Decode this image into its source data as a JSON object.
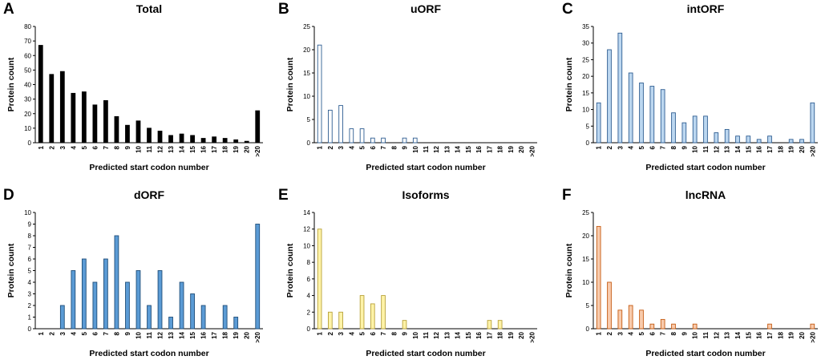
{
  "chart_data": [
    {
      "panel": "A",
      "title": "Total",
      "type": "bar",
      "ylabel": "Protein count",
      "xlabel": "Predicted start codon number",
      "ylim": [
        0,
        80
      ],
      "ystep": 10,
      "fill": "#000000",
      "edge": "#000000",
      "categories": [
        "1",
        "2",
        "3",
        "4",
        "5",
        "6",
        "7",
        "8",
        "9",
        "10",
        "11",
        "12",
        "13",
        "14",
        "15",
        "16",
        "17",
        "18",
        "19",
        "20",
        ">20"
      ],
      "values": [
        67,
        47,
        49,
        34,
        35,
        26,
        29,
        18,
        12,
        15,
        10,
        8,
        5,
        6,
        5,
        3,
        4,
        3,
        2,
        1,
        22
      ]
    },
    {
      "panel": "B",
      "title": "uORF",
      "type": "bar",
      "ylabel": "Protein count",
      "xlabel": "Predicted start codon number",
      "ylim": [
        0,
        25
      ],
      "ystep": 5,
      "fill": "#ffffff",
      "edge": "#2e5d91",
      "categories": [
        "1",
        "2",
        "3",
        "4",
        "5",
        "6",
        "7",
        "8",
        "9",
        "10",
        "11",
        "12",
        "13",
        "14",
        "15",
        "16",
        "17",
        "18",
        "19",
        "20",
        ">20"
      ],
      "values": [
        21,
        7,
        8,
        3,
        3,
        1,
        1,
        0,
        1,
        1,
        0,
        0,
        0,
        0,
        0,
        0,
        0,
        0,
        0,
        0,
        0
      ]
    },
    {
      "panel": "C",
      "title": "intORF",
      "type": "bar",
      "ylabel": "Protein count",
      "xlabel": "Predicted start codon number",
      "ylim": [
        0,
        35
      ],
      "ystep": 5,
      "fill": "#bcd7f0",
      "edge": "#2e5d91",
      "categories": [
        "1",
        "2",
        "3",
        "4",
        "5",
        "6",
        "7",
        "8",
        "9",
        "10",
        "11",
        "12",
        "13",
        "14",
        "15",
        "16",
        "17",
        "18",
        "19",
        "20",
        ">20"
      ],
      "values": [
        12,
        28,
        33,
        21,
        18,
        17,
        16,
        9,
        6,
        8,
        8,
        3,
        4,
        2,
        2,
        1,
        2,
        0,
        1,
        1,
        12
      ]
    },
    {
      "panel": "D",
      "title": "dORF",
      "type": "bar",
      "ylabel": "Protein count",
      "xlabel": "Predicted start codon number",
      "ylim": [
        0,
        10
      ],
      "ystep": 1,
      "fill": "#5b9bd5",
      "edge": "#1f4e79",
      "categories": [
        "1",
        "2",
        "3",
        "4",
        "5",
        "6",
        "7",
        "8",
        "9",
        "10",
        "11",
        "12",
        "13",
        "14",
        "15",
        "16",
        "17",
        "18",
        "19",
        "20",
        ">20"
      ],
      "values": [
        0,
        0,
        2,
        5,
        6,
        4,
        6,
        8,
        4,
        5,
        2,
        5,
        1,
        4,
        3,
        2,
        0,
        2,
        1,
        0,
        9
      ]
    },
    {
      "panel": "E",
      "title": "Isoforms",
      "type": "bar",
      "ylabel": "Protein count",
      "xlabel": "Predicted start codon number",
      "ylim": [
        0,
        14
      ],
      "ystep": 2,
      "fill": "#fff3a8",
      "edge": "#b8a23a",
      "categories": [
        "1",
        "2",
        "3",
        "4",
        "5",
        "6",
        "7",
        "8",
        "9",
        "10",
        "11",
        "12",
        "13",
        "14",
        "15",
        "16",
        "17",
        "18",
        "19",
        "20",
        ">20"
      ],
      "values": [
        12,
        2,
        2,
        0,
        4,
        3,
        4,
        0,
        1,
        0,
        0,
        0,
        0,
        0,
        0,
        0,
        1,
        1,
        0,
        0,
        0
      ]
    },
    {
      "panel": "F",
      "title": "lncRNA",
      "type": "bar",
      "ylabel": "Protein count",
      "xlabel": "Predicted start codon number",
      "ylim": [
        0,
        25
      ],
      "ystep": 5,
      "fill": "#f8cbad",
      "edge": "#c55a11",
      "categories": [
        "1",
        "2",
        "3",
        "4",
        "5",
        "6",
        "7",
        "8",
        "9",
        "10",
        "11",
        "12",
        "13",
        "14",
        "15",
        "16",
        "17",
        "18",
        "19",
        "20",
        ">20"
      ],
      "values": [
        22,
        10,
        4,
        5,
        4,
        1,
        2,
        1,
        0,
        1,
        0,
        0,
        0,
        0,
        0,
        0,
        1,
        0,
        0,
        0,
        1
      ]
    }
  ]
}
